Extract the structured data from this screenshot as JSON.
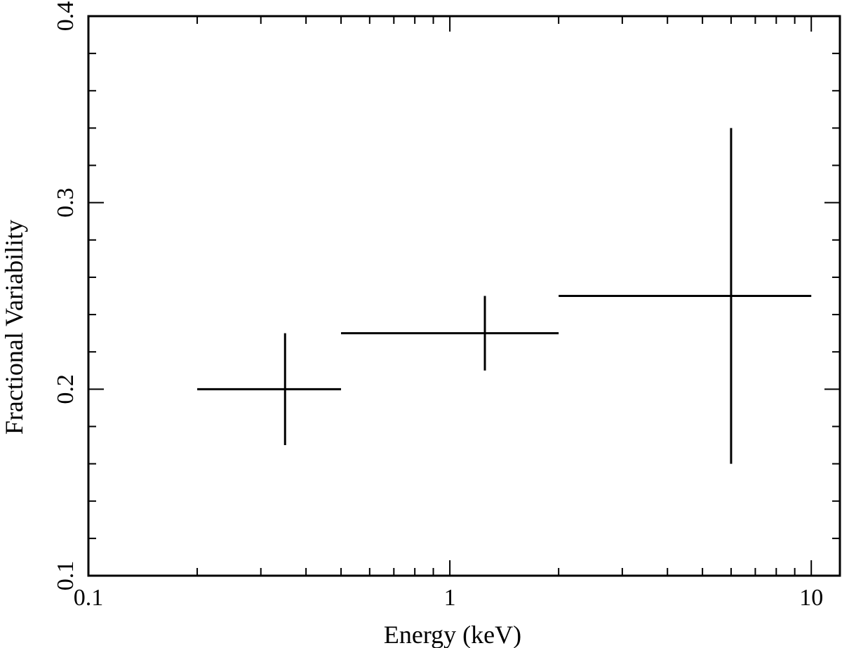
{
  "chart_data": {
    "type": "scatter",
    "title": "",
    "xlabel": "Energy (keV)",
    "ylabel": "Fractional Variability",
    "x_scale": "log",
    "y_scale": "linear",
    "xlim": [
      0.1,
      12
    ],
    "ylim": [
      0.1,
      0.4
    ],
    "x_tick_labels": [
      {
        "value": 0.1,
        "label": "0.1"
      },
      {
        "value": 1,
        "label": "1"
      },
      {
        "value": 10,
        "label": "10"
      }
    ],
    "y_tick_labels": [
      {
        "value": 0.1,
        "label": "0.1"
      },
      {
        "value": 0.2,
        "label": "0.2"
      },
      {
        "value": 0.3,
        "label": "0.3"
      },
      {
        "value": 0.4,
        "label": "0.4"
      }
    ],
    "grid": false,
    "legend": "none",
    "series": [
      {
        "color": "#000000",
        "points": [
          {
            "x": 0.35,
            "x_low": 0.2,
            "x_high": 0.5,
            "y": 0.2,
            "y_low": 0.17,
            "y_high": 0.23
          },
          {
            "x": 1.25,
            "x_low": 0.5,
            "x_high": 2.0,
            "y": 0.23,
            "y_low": 0.21,
            "y_high": 0.25
          },
          {
            "x": 6.0,
            "x_low": 2.0,
            "x_high": 10.0,
            "y": 0.25,
            "y_low": 0.16,
            "y_high": 0.34
          }
        ]
      }
    ]
  }
}
